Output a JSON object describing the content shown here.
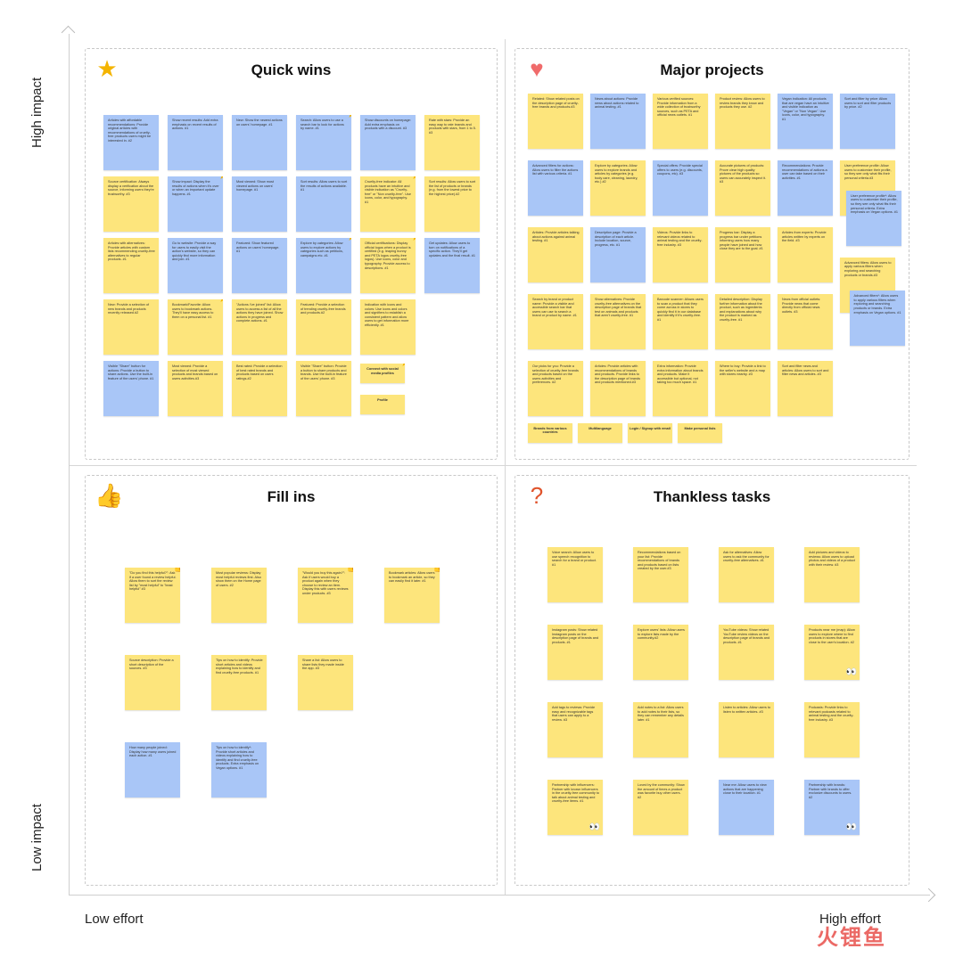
{
  "axes": {
    "y_top": "High impact",
    "y_bottom": "Low impact",
    "x_left": "Low effort",
    "x_right": "High effort"
  },
  "colors": {
    "yellow_note": "#fde57c",
    "blue_note": "#a9c6f7",
    "accent_red": "#f06b6b",
    "accent_star": "#f4b400",
    "accent_green": "#2ea44f"
  },
  "quadrants": [
    {
      "title": "Quick wins",
      "icon": "star-icon",
      "glyph": "★",
      "glyph_color": "#f4b400",
      "notes": [
        {
          "c": "b",
          "t": "Articles with affordable recommendations: Provide original articles with recommendations of cruelty-free products users might be interested in. #2"
        },
        {
          "c": "b",
          "t": "Show recent results: Add extra emphasis on recent results of actions. #1"
        },
        {
          "c": "b",
          "t": "New: Show the newest actions on users' homepage. #1"
        },
        {
          "c": "b",
          "t": "Search: Allow users to use a search bar to look for actions by name. #1",
          "badge": "star"
        },
        {
          "c": "b",
          "t": "Show discounts on homepage: Add extra emphasis on products with a discount. #3"
        },
        {
          "c": "y",
          "t": "Rate with stars: Provide an easy way to rate brands and products with stars, from 1 to 5. #3"
        },
        {
          "c": "y",
          "t": "Source certification: Always display a verification about the source, informing users they're trustworthy. #3"
        },
        {
          "c": "b",
          "t": "Show impact: Display the results of actions when it's over or when an important update happens. #1",
          "badge": "star"
        },
        {
          "c": "b",
          "t": "Most viewed: Show most viewed actions on users' homepage. #1"
        },
        {
          "c": "b",
          "t": "Sort results: Allow users to sort the results of actions available. #1"
        },
        {
          "c": "y",
          "t": "Cruelty-free indicator: All products have an intuitive and visible indication as \"Cruelty-free\" or \"Non cruelty-free\". Use icons, color, and typography. #1",
          "badge": "star"
        },
        {
          "c": "y",
          "t": "Sort results: Allow users to sort the list of products or brands (e.g. from the lowest price to the highest price).#2"
        },
        {
          "c": "y",
          "t": "Articles with alternatives: Provide articles with custom lists recommending cruelty-free alternatives to regular products. #1"
        },
        {
          "c": "b",
          "t": "Go to website: Provide a way for users to easily visit the action's website, so they can quickly find more information and join. #1"
        },
        {
          "c": "b",
          "t": "Featured: Show featured actions on users' homepage. #1"
        },
        {
          "c": "b",
          "t": "Explore by categories: Allow users to explore actions by categories such as petitions, campaigns etc. #1",
          "badge": "star"
        },
        {
          "c": "y",
          "t": "Official certifications: Display official logos when a product is certified (e.g. leaping bunny and PETA logos cruelty-free logos). Use icons, color and typography. Provide access to descriptions. #1",
          "badge": "star"
        },
        {
          "c": "b",
          "t": "Get updates: Allow users to turn on notifications of a specific action. They'll get updates and the final result. #1"
        },
        {
          "c": "y",
          "t": "New: Provide a selection of new brands and products recently released.#2"
        },
        {
          "c": "y",
          "t": "Bookmark/Favorite: Allow users to bookmark actions. They'll have easy access to them on a personal list. #1",
          "badge": "star"
        },
        {
          "c": "y",
          "t": "\"Actions I've joined\" list: Allow users to access a list of all the actions they have joined. Show actions in progress and complete actions. #1"
        },
        {
          "c": "y",
          "t": "Featured: Provide a selection of trending cruelty-free brands and products.#2"
        },
        {
          "c": "y",
          "t": "Indication with icons and colors: Use icons and colors and signifiers to establish a consistent pattern and allow users to get information more efficiently. #1"
        },
        {
          "c": "b",
          "t": "Visible \"Share\" button for actions: Provide a button to share actions. Use the built-in feature of the users' phone. #1"
        },
        {
          "c": "y",
          "t": "Most viewed: Provide a selection of most viewed products and brands based on users activities.#3"
        },
        {
          "c": "y",
          "t": "Best rated: Provide a selection of best rated brands and products based on users ratings.#2"
        },
        {
          "c": "y",
          "t": "Visible \"Share\" button: Provide a button to share products and brands. Use the built-in feature of the users' phone. #3"
        },
        {
          "c": "y",
          "t": "Connect with social media profiles",
          "small": true,
          "badge": "star"
        },
        {
          "c": "y",
          "t": "Profile",
          "small": true
        }
      ]
    },
    {
      "title": "Major projects",
      "icon": "heart-icon",
      "glyph": "♥",
      "glyph_color": "#f06b6b",
      "notes": [
        {
          "c": "y",
          "t": "Related: Show related posts on the description page of cruelty-free brands and products.#3"
        },
        {
          "c": "b",
          "t": "News about actions: Provide news about actions related to animal testing. #1"
        },
        {
          "c": "y",
          "t": "Various verified sources: Provide information from a wide collection of trustworthy sources, such as PETA and official news outlets. #1"
        },
        {
          "c": "y",
          "t": "Product review: Allow users to review brands they know and products they use. #2"
        },
        {
          "c": "b",
          "t": "Vegan indication: All products that are vegan have an intuitive and visible indication as \"Vegan\" or \"Non Vegan\". Use icons, color, and typography. #1",
          "badge": "heart"
        },
        {
          "c": "b",
          "t": "Sort and filter by price: Allow users to sort and filter products by price. #2"
        },
        {
          "c": "b",
          "t": "Advanced filters for actions: Allow users to filter the actions list with various criteria. #1"
        },
        {
          "c": "y",
          "t": "Explore by categories: Allow users to explore brands and articles by categories (e.g. body care, cleaning, laundry, etc.) #2"
        },
        {
          "c": "b",
          "t": "Special offers: Provide special offers to users (e.g. discounts, coupons, etc). #3"
        },
        {
          "c": "y",
          "t": "Accurate pictures of products: Prove clear high quality pictures of the products so users can accurately inspect it. #3"
        },
        {
          "c": "b",
          "t": "Recommendations: Provide recommendations of actions a user can take based on their activities. #1"
        },
        {
          "c": "y",
          "t": "User preference profile: Allow users to customize their profile, so they see only what fits their personal criteria.#3",
          "badge": "heart"
        },
        {
          "c": "b",
          "t": "User preference profile*: Allow users to customize their profile, so they see only what fits their personal criteria. Extra emphasis on Vegan options. #1"
        },
        {
          "c": "y",
          "t": "Articles: Provide articles talking about actions against animal testing. #1"
        },
        {
          "c": "b",
          "t": "Description page: Provide a description of each article. Include location, source, progress, etc. #1",
          "badge": "heart"
        },
        {
          "c": "y",
          "t": "Videos: Provide links to relevant videos related to animal testing and the cruelty-free industry. #3"
        },
        {
          "c": "y",
          "t": "Progress bar: Display a progress bar under petitions informing users how many people have joined and how close they are to the goal. #1"
        },
        {
          "c": "y",
          "t": "Articles from experts: Provide articles written by experts on the field. #3"
        },
        {
          "c": "y",
          "t": "Advanced filters: Allow users to apply various filters when exploring and searching products or brands.#3",
          "badge": "heart"
        },
        {
          "c": "b",
          "t": "Advanced filters*: Allow users to apply various filters when exploring and searching products or brands. Extra emphasis on Vegan options. #1"
        },
        {
          "c": "y",
          "t": "Search by brand or product name: Provide a visible and accessible search bar that users can use to search a brand or product by name. #1",
          "badge": "heart"
        },
        {
          "c": "y",
          "t": "Show alternatives: Provide cruelty-free alternatives on the description page of brands that test on animals and products that aren't cruelty-free. #1",
          "badge": "heart"
        },
        {
          "c": "y",
          "t": "Barcode scanner: Allows users to scan a product that they come across in stores to quickly find it in our database and identify if it's cruelty-free. #1",
          "badge": "heart"
        },
        {
          "c": "y",
          "t": "Detailed description: Display further information about the product, such as ingredients and explanations about why the product is marked as cruelty-free. #1"
        },
        {
          "c": "y",
          "t": "News from official outlets: Provide news that come directly from official news outlets. #3"
        },
        {
          "c": "y",
          "t": "Our picks for you: Provide a selection of cruelty-free brands and products based on the users activities and preferences. #2",
          "badge": "heart"
        },
        {
          "c": "y",
          "t": "Articles: Provide articles with recommendations of brands and products. Provide links to the description page of brands and products mentioned.#3"
        },
        {
          "c": "y",
          "t": "Extra information: Provide extra information about brands and products. Make it accessible but optional, not taking too much space. #1"
        },
        {
          "c": "y",
          "t": "Where to buy: Provide a link to the seller's website and a map with stores nearby. #3"
        },
        {
          "c": "y",
          "t": "Sort and filter news and articles: Allow users to sort and filter news and articles. #3"
        },
        {
          "c": "y",
          "t": "Brands from various countries",
          "small": true,
          "badge": "heart"
        },
        {
          "c": "y",
          "t": "Multilanguage",
          "small": true,
          "badge": "heart"
        },
        {
          "c": "y",
          "t": "Login / Signup with email",
          "small": true
        },
        {
          "c": "y",
          "t": "Make personal lists",
          "small": true
        }
      ]
    },
    {
      "title": "Fill ins",
      "icon": "thumbs-up-icon",
      "glyph": "👍",
      "glyph_color": "#2ea44f",
      "notes": [
        {
          "c": "y",
          "t": "\"Do you find this helpful?\": Ask if a user found a review helpful. Allow them to sort the review list by \"most helpful\" to \"least helpful\" #3",
          "badge": "thumb"
        },
        {
          "c": "y",
          "t": "Most popular reviews: Display most helpful reviews first. Also show them on the Home page of users. #2"
        },
        {
          "c": "y",
          "t": "\"Would you buy this again?\": Ask if users would buy a product again when they choose to review an item. Display this with users reviews under products. #3",
          "badge": "thumb"
        },
        {
          "c": "y",
          "t": "Bookmark articles: Allow users to bookmark an article, so they can easily find it later. #1",
          "badge": "thumb"
        },
        {
          "c": "y",
          "t": "Source description: Provide a short description of the sources. #3"
        },
        {
          "c": "y",
          "t": "Tips on how to identify: Provide short articles and videos explaining how to identify and find cruelty-free products. #1"
        },
        {
          "c": "y",
          "t": "Share a list: Allow users to share lists they made inside the app. #3"
        },
        {
          "c": "b",
          "t": "How many people joined: Display how many users joined each action. #1"
        },
        {
          "c": "b",
          "t": "Tips on how to identify*: Provide short articles and videos explaining how to identify and find cruelty-free products. Extra emphasis on Vegan options. #1"
        }
      ]
    },
    {
      "title": "Thankless tasks",
      "icon": "question-icon",
      "glyph": "?",
      "glyph_color": "#e0532b",
      "notes": [
        {
          "c": "y",
          "t": "Voice search: Allow users to use speech recognition to search for a brand or product. #1"
        },
        {
          "c": "y",
          "t": "Recommendations based on your list: Provide recommendations of brands and products based on lists created by the user.#3"
        },
        {
          "c": "y",
          "t": "Ask for alternatives: Allow users to ask the community for cruelty-free alternatives. #1"
        },
        {
          "c": "y",
          "t": "Add pictures and videos to reviews: Allow users to upload photos and videos of a product with their review. #3"
        },
        {
          "c": "y",
          "t": "Instagram posts: Show related Instagram posts on the description page of brands and products. #1"
        },
        {
          "c": "y",
          "t": "Explore users' lists: Allow users to explore lists made by the community.#2"
        },
        {
          "c": "y",
          "t": "YouTube videos: Show related YouTube review videos on the description page of brands and products. #1"
        },
        {
          "c": "y",
          "t": "Products near me (map): Allow users to explore where to find products in stores that are close to the user's location. #2",
          "badge": "eyes"
        },
        {
          "c": "y",
          "t": "Add tags to reviews: Provide easy and recognizable tags that users can apply to a review. #3"
        },
        {
          "c": "y",
          "t": "Add notes to a list: Allow users to add notes to their lists, so they can remember any details later. #1"
        },
        {
          "c": "y",
          "t": "Listen to articles: Allow users to listen to written articles. #3"
        },
        {
          "c": "y",
          "t": "Podcasts: Provide links to relevant podcasts related to animal testing and the cruelty-free industry. #3"
        },
        {
          "c": "y",
          "t": "Partnership with influencers: Partner with known influencers in the cruelty-free community to talk about animal testing and cruelty-free items. #1",
          "badge": "eyes"
        },
        {
          "c": "y",
          "t": "Loved by the community: Show the amount of times a product was favorite buy other users. #2"
        },
        {
          "c": "b",
          "t": "Near me: Allow users to view actions that are happening close to their location. #1"
        },
        {
          "c": "b",
          "t": "Partnership with brands: Partner with brands to offer exclusive discounts to users. #2",
          "badge": "eyes"
        }
      ]
    }
  ],
  "watermark": "火锂鱼"
}
